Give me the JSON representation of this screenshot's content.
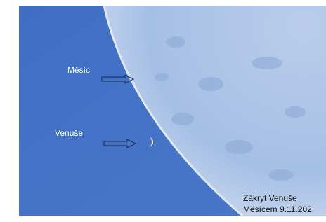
{
  "labels": {
    "moon": "Měsíc",
    "venus": "Venuše"
  },
  "caption": {
    "line1": "Zákryt Venuše",
    "line2": "Měsícem 9.11.202"
  }
}
